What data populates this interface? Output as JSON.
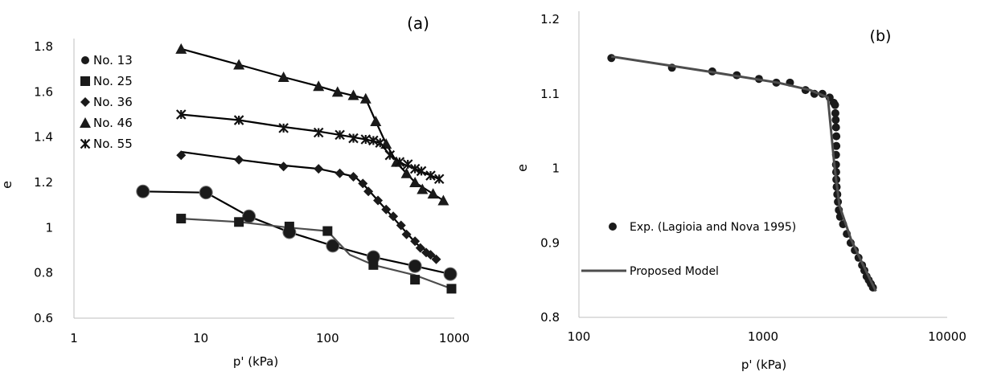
{
  "chart_data": [
    {
      "panel_label": "(a)",
      "type": "line",
      "xscale": "log",
      "xlabel": "p' (kPa)",
      "ylabel": "e",
      "xlim": [
        1,
        1000
      ],
      "ylim": [
        0.6,
        1.8
      ],
      "x_ticks": [
        1,
        10,
        100,
        1000
      ],
      "x_tick_labels": [
        "1",
        "10",
        "100",
        "1000"
      ],
      "y_ticks": [
        0.6,
        0.8,
        1.0,
        1.2,
        1.4,
        1.6,
        1.8
      ],
      "y_tick_labels": [
        "0.6",
        "0.8",
        "1",
        "1.2",
        "1.4",
        "1.6",
        "1.8"
      ],
      "grid": false,
      "legend_position": "top-left",
      "series": [
        {
          "name": "No. 13",
          "marker": "circle",
          "line_color": "#000000",
          "points": [
            [
              3.5,
              1.16
            ],
            [
              11,
              1.155
            ],
            [
              24,
              1.05
            ],
            [
              50,
              0.98
            ],
            [
              110,
              0.92
            ],
            [
              230,
              0.87
            ],
            [
              490,
              0.83
            ],
            [
              930,
              0.795
            ]
          ],
          "line": [
            [
              3.5,
              1.16
            ],
            [
              11,
              1.155
            ],
            [
              24,
              1.05
            ],
            [
              50,
              0.98
            ],
            [
              110,
              0.92
            ],
            [
              230,
              0.87
            ],
            [
              490,
              0.83
            ],
            [
              930,
              0.795
            ]
          ]
        },
        {
          "name": "No. 25",
          "marker": "square",
          "line_color": "#4d4d4d",
          "points": [
            [
              7,
              1.04
            ],
            [
              20,
              1.025
            ],
            [
              50,
              1.005
            ],
            [
              100,
              0.985
            ],
            [
              230,
              0.835
            ],
            [
              490,
              0.77
            ],
            [
              950,
              0.73
            ]
          ],
          "line": [
            [
              7,
              1.04
            ],
            [
              20,
              1.025
            ],
            [
              50,
              1.0
            ],
            [
              100,
              0.985
            ],
            [
              150,
              0.88
            ],
            [
              230,
              0.835
            ],
            [
              490,
              0.79
            ],
            [
              950,
              0.73
            ]
          ]
        },
        {
          "name": "No. 36",
          "marker": "diamond",
          "line_color": "#000000",
          "points": [
            [
              7,
              1.32
            ],
            [
              20,
              1.3
            ],
            [
              45,
              1.27
            ],
            [
              85,
              1.26
            ],
            [
              125,
              1.24
            ],
            [
              160,
              1.225
            ],
            [
              190,
              1.195
            ],
            [
              210,
              1.16
            ],
            [
              250,
              1.12
            ],
            [
              290,
              1.08
            ],
            [
              330,
              1.05
            ],
            [
              380,
              1.01
            ],
            [
              420,
              0.97
            ],
            [
              490,
              0.94
            ],
            [
              540,
              0.91
            ],
            [
              600,
              0.89
            ],
            [
              650,
              0.88
            ],
            [
              720,
              0.86
            ]
          ],
          "line": [
            [
              7,
              1.335
            ],
            [
              20,
              1.3
            ],
            [
              45,
              1.275
            ],
            [
              85,
              1.26
            ],
            [
              125,
              1.24
            ],
            [
              165,
              1.225
            ],
            [
              200,
              1.18
            ],
            [
              300,
              1.07
            ],
            [
              500,
              0.93
            ],
            [
              750,
              0.86
            ]
          ]
        },
        {
          "name": "No. 46",
          "marker": "triangle",
          "line_color": "#000000",
          "points": [
            [
              7,
              1.79
            ],
            [
              20,
              1.72
            ],
            [
              45,
              1.665
            ],
            [
              85,
              1.625
            ],
            [
              120,
              1.6
            ],
            [
              160,
              1.585
            ],
            [
              200,
              1.57
            ],
            [
              240,
              1.47
            ],
            [
              290,
              1.37
            ],
            [
              350,
              1.29
            ],
            [
              420,
              1.24
            ],
            [
              490,
              1.2
            ],
            [
              560,
              1.17
            ],
            [
              680,
              1.15
            ],
            [
              820,
              1.12
            ]
          ],
          "line": [
            [
              7,
              1.79
            ],
            [
              20,
              1.72
            ],
            [
              45,
              1.665
            ],
            [
              85,
              1.625
            ],
            [
              120,
              1.6
            ],
            [
              200,
              1.57
            ],
            [
              240,
              1.47
            ],
            [
              290,
              1.37
            ],
            [
              360,
              1.28
            ],
            [
              490,
              1.2
            ],
            [
              820,
              1.12
            ]
          ]
        },
        {
          "name": "No. 55",
          "marker": "cross",
          "line_color": "#000000",
          "points": [
            [
              7,
              1.5
            ],
            [
              20,
              1.475
            ],
            [
              45,
              1.44
            ],
            [
              85,
              1.42
            ],
            [
              125,
              1.41
            ],
            [
              160,
              1.395
            ],
            [
              200,
              1.39
            ],
            [
              230,
              1.385
            ],
            [
              260,
              1.375
            ],
            [
              310,
              1.32
            ],
            [
              370,
              1.29
            ],
            [
              430,
              1.28
            ],
            [
              490,
              1.26
            ],
            [
              550,
              1.25
            ],
            [
              650,
              1.23
            ],
            [
              760,
              1.215
            ]
          ],
          "line": [
            [
              7,
              1.5
            ],
            [
              20,
              1.475
            ],
            [
              45,
              1.445
            ],
            [
              85,
              1.425
            ],
            [
              125,
              1.41
            ],
            [
              200,
              1.39
            ],
            [
              260,
              1.375
            ],
            [
              310,
              1.32
            ],
            [
              400,
              1.28
            ],
            [
              760,
              1.215
            ]
          ]
        }
      ]
    },
    {
      "panel_label": "(b)",
      "type": "scatter",
      "xscale": "log",
      "xlabel": "p' (kPa)",
      "ylabel": "e",
      "xlim": [
        100,
        10000
      ],
      "ylim": [
        0.8,
        1.2
      ],
      "x_ticks": [
        100,
        1000,
        10000
      ],
      "x_tick_labels": [
        "100",
        "1000",
        "10000"
      ],
      "y_ticks": [
        0.8,
        0.9,
        1.0,
        1.1,
        1.2
      ],
      "y_tick_labels": [
        "0.8",
        "0.9",
        "1",
        "1.1",
        "1.2"
      ],
      "grid": false,
      "legend_position": "center-left",
      "series": [
        {
          "name": "Exp. (Lagioia and Nova 1995)",
          "marker": "circle",
          "line_color": "#000000",
          "points": [
            [
              150,
              1.148
            ],
            [
              320,
              1.135
            ],
            [
              530,
              1.13
            ],
            [
              720,
              1.125
            ],
            [
              950,
              1.12
            ],
            [
              1180,
              1.115
            ],
            [
              1400,
              1.115
            ],
            [
              1700,
              1.105
            ],
            [
              1900,
              1.1
            ],
            [
              2100,
              1.1
            ],
            [
              2300,
              1.095
            ],
            [
              2420,
              1.088
            ],
            [
              2460,
              1.085
            ],
            [
              2470,
              1.074
            ],
            [
              2480,
              1.065
            ],
            [
              2490,
              1.055
            ],
            [
              2500,
              1.043
            ],
            [
              2500,
              1.03
            ],
            [
              2490,
              1.018
            ],
            [
              2490,
              1.005
            ],
            [
              2495,
              0.995
            ],
            [
              2500,
              0.985
            ],
            [
              2510,
              0.975
            ],
            [
              2530,
              0.965
            ],
            [
              2550,
              0.955
            ],
            [
              2580,
              0.944
            ],
            [
              2620,
              0.935
            ],
            [
              2720,
              0.925
            ],
            [
              2850,
              0.912
            ],
            [
              2990,
              0.9
            ],
            [
              3150,
              0.89
            ],
            [
              3300,
              0.88
            ],
            [
              3450,
              0.87
            ],
            [
              3550,
              0.863
            ],
            [
              3650,
              0.855
            ],
            [
              3750,
              0.85
            ],
            [
              3850,
              0.845
            ],
            [
              3950,
              0.84
            ]
          ]
        },
        {
          "name": "Proposed Model",
          "line_color": "#4d4d4d",
          "line": [
            [
              150,
              1.15
            ],
            [
              500,
              1.13
            ],
            [
              1200,
              1.115
            ],
            [
              1800,
              1.105
            ],
            [
              2250,
              1.095
            ],
            [
              2450,
              1.0
            ],
            [
              2600,
              0.95
            ],
            [
              3000,
              0.905
            ],
            [
              3500,
              0.87
            ],
            [
              4100,
              0.835
            ]
          ]
        }
      ]
    }
  ]
}
